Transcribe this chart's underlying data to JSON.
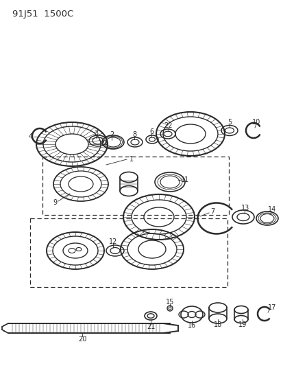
{
  "title": "91J51  1500C",
  "bg_color": "#ffffff",
  "lc": "#2a2a2a",
  "fig_width": 4.14,
  "fig_height": 5.33,
  "dpi": 100
}
